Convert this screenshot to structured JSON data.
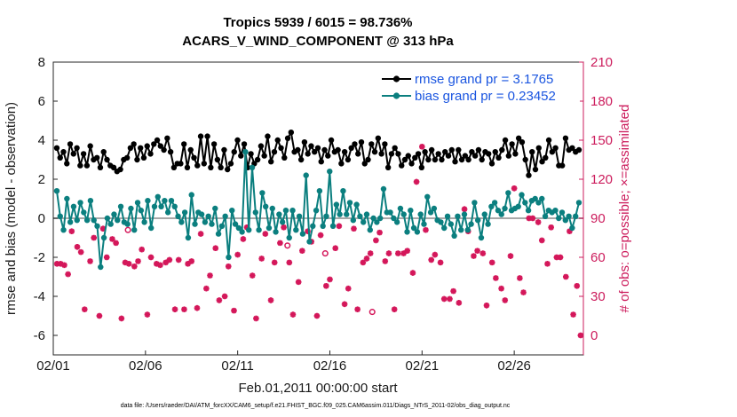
{
  "chart_data": {
    "type": "line",
    "title": "Tropics 5939 / 6015 = 98.736%",
    "subtitle": "ACARS_V_WIND_COMPONENT @ 313 hPa",
    "xlabel": "Feb.01,2011 00:00:00 start",
    "ylabel": "rmse and bias (model - observation)",
    "ylabel_right": "# of obs: o=possible; ×=assimilated",
    "xlim": [
      0,
      28.75
    ],
    "ylim": [
      -7,
      8
    ],
    "ylim_right": [
      -15,
      210
    ],
    "x_ticks": [
      0,
      5,
      10,
      15,
      20,
      25
    ],
    "x_tick_labels": [
      "02/01",
      "02/06",
      "02/11",
      "02/16",
      "02/21",
      "02/26"
    ],
    "y_ticks": [
      8,
      6,
      4,
      2,
      0,
      -2,
      -4,
      -6
    ],
    "y_tick_labels": [
      "8",
      "6",
      "4",
      "2",
      "0",
      "-2",
      "-4",
      "-6"
    ],
    "y_ticks_right": [
      210,
      180,
      150,
      120,
      90,
      60,
      30,
      0
    ],
    "y_tick_labels_right": [
      "210",
      "180",
      "150",
      "120",
      "90",
      "60",
      "30",
      "0"
    ],
    "zero_line": 0,
    "legend_position": "top-right",
    "colors": {
      "rmse": "#000000",
      "bias": "#0b7f7f",
      "obs": "#d4175a",
      "zero": "#a8a8a8",
      "legend_text": "#1a55e0",
      "right_axis": "#cc1c5c"
    },
    "series": [
      {
        "name": "rmse grand pr = 3.1765",
        "values": [
          3.6,
          3.1,
          3.4,
          2.8,
          3.8,
          3.3,
          3.6,
          2.7,
          3.3,
          2.7,
          3.7,
          3.0,
          3.1,
          2.6,
          3.4,
          3.0,
          2.7,
          2.6,
          2.4,
          2.5,
          3.0,
          3.1,
          3.6,
          3.8,
          3.0,
          3.6,
          3.1,
          3.7,
          3.3,
          3.8,
          4.0,
          3.7,
          3.5,
          4.1,
          3.4,
          2.6,
          2.8,
          2.8,
          3.8,
          2.6,
          3.5,
          3.1,
          2.7,
          4.2,
          2.8,
          4.2,
          2.6,
          3.8,
          3.0,
          2.6,
          3.5,
          2.5,
          2.8,
          3.4,
          4.0,
          3.2,
          3.8,
          2.6,
          3.3,
          2.8,
          3.0,
          3.7,
          3.2,
          4.2,
          2.9,
          3.4,
          4.0,
          3.6,
          3.1,
          4.1,
          4.4,
          3.4,
          3.5,
          3.0,
          3.9,
          3.3,
          3.7,
          3.4,
          3.6,
          2.9,
          3.5,
          3.2,
          4.0,
          3.4,
          3.5,
          2.8,
          3.4,
          3.0,
          3.6,
          3.8,
          3.3,
          3.9,
          2.8,
          3.0,
          3.8,
          3.4,
          4.1,
          3.3,
          3.8,
          2.6,
          3.3,
          3.6,
          3.3,
          2.7,
          3.0,
          3.2,
          2.8,
          3.1,
          3.3,
          2.6,
          3.4,
          3.0,
          3.5,
          3.0,
          3.3,
          3.0,
          3.4,
          3.2,
          3.5,
          2.9,
          3.5,
          3.0,
          3.2,
          3.0,
          3.4,
          3.2,
          3.5,
          3.0,
          3.4,
          3.3,
          2.8,
          3.4,
          3.1,
          3.5,
          4.0,
          3.2,
          3.8,
          3.3,
          4.1,
          3.9,
          3.0,
          2.2,
          3.4,
          2.5,
          3.6,
          2.9,
          3.1,
          4.0,
          3.4,
          3.6,
          2.7,
          2.7,
          4.1,
          3.5,
          3.6,
          3.4,
          3.5
        ]
      },
      {
        "name": "bias grand pr = 0.23452",
        "values": [
          1.4,
          0.1,
          -0.6,
          1.0,
          -0.2,
          0.6,
          -0.1,
          0.8,
          0.3,
          -0.1,
          0.9,
          -0.1,
          -0.4,
          -2.5,
          -1.0,
          0.0,
          -0.3,
          0.2,
          -0.1,
          0.6,
          -0.2,
          -0.3,
          0.5,
          -0.6,
          0.8,
          0.4,
          -0.2,
          0.9,
          -0.5,
          0.6,
          1.1,
          0.6,
          0.9,
          0.3,
          0.9,
          0.6,
          0.1,
          -0.2,
          0.3,
          -1.0,
          1.2,
          -0.3,
          0.3,
          0.2,
          -0.2,
          0.1,
          -0.3,
          0.5,
          -0.8,
          -0.4,
          0.1,
          -2.0,
          0.4,
          -0.3,
          -0.5,
          -0.7,
          3.4,
          -0.6,
          2.6,
          0.3,
          -0.6,
          1.3,
          0.6,
          -0.5,
          0.5,
          -0.7,
          0.2,
          -0.2,
          0.4,
          -1.0,
          0.4,
          -0.6,
          0.1,
          -0.8,
          2.2,
          -1.2,
          -0.4,
          0.4,
          1.4,
          -0.4,
          0.1,
          2.4,
          -0.4,
          0.7,
          0.2,
          1.4,
          0.2,
          0.8,
          -0.1,
          0.7,
          0.1,
          -0.2,
          0.2,
          -0.6,
          0.0,
          -0.2,
          0.0,
          1.5,
          0.3,
          0.3,
          0.0,
          -0.2,
          0.5,
          0.2,
          -0.7,
          0.4,
          -0.5,
          -0.7,
          0.2,
          -0.3,
          1.1,
          0.3,
          0.5,
          -0.1,
          -0.2,
          -0.5,
          0.1,
          -0.3,
          -0.9,
          0.1,
          -0.6,
          0.2,
          -0.6,
          -0.3,
          0.8,
          -0.1,
          -1.0,
          0.2,
          -0.3,
          0.6,
          0.8,
          0.4,
          0.2,
          0.5,
          1.3,
          0.4,
          0.5,
          0.6,
          1.2,
          0.8,
          0.4,
          0.9,
          1.0,
          0.8,
          1.0,
          0.1,
          0.4,
          0.3,
          0.4,
          0.0,
          0.3,
          -0.1,
          0.1,
          -0.5,
          0.1,
          0.8
        ]
      }
    ],
    "obs_possible": [
      {
        "x": 4.05,
        "y": 81
      },
      {
        "x": 12.7,
        "y": 69
      },
      {
        "x": 14.75,
        "y": 63
      },
      {
        "x": 17.3,
        "y": 18
      }
    ],
    "obs_assimilated": [
      {
        "x": 0.2,
        "y": 55
      },
      {
        "x": 0.4,
        "y": 55
      },
      {
        "x": 0.6,
        "y": 54
      },
      {
        "x": 0.8,
        "y": 47
      },
      {
        "x": 1.0,
        "y": 80
      },
      {
        "x": 1.3,
        "y": 68
      },
      {
        "x": 1.5,
        "y": 64
      },
      {
        "x": 1.7,
        "y": 20
      },
      {
        "x": 2.0,
        "y": 57
      },
      {
        "x": 2.2,
        "y": 75
      },
      {
        "x": 2.5,
        "y": 15
      },
      {
        "x": 2.7,
        "y": 82
      },
      {
        "x": 2.9,
        "y": 60
      },
      {
        "x": 3.2,
        "y": 74
      },
      {
        "x": 3.4,
        "y": 71
      },
      {
        "x": 3.7,
        "y": 13
      },
      {
        "x": 3.9,
        "y": 56
      },
      {
        "x": 4.1,
        "y": 55
      },
      {
        "x": 4.4,
        "y": 53
      },
      {
        "x": 4.6,
        "y": 57
      },
      {
        "x": 4.8,
        "y": 66
      },
      {
        "x": 5.1,
        "y": 16
      },
      {
        "x": 5.3,
        "y": 60
      },
      {
        "x": 5.6,
        "y": 55
      },
      {
        "x": 5.8,
        "y": 54
      },
      {
        "x": 6.1,
        "y": 56
      },
      {
        "x": 6.3,
        "y": 58
      },
      {
        "x": 6.6,
        "y": 20
      },
      {
        "x": 6.8,
        "y": 58
      },
      {
        "x": 7.1,
        "y": 20
      },
      {
        "x": 7.3,
        "y": 55
      },
      {
        "x": 7.5,
        "y": 57
      },
      {
        "x": 7.8,
        "y": 21
      },
      {
        "x": 8.0,
        "y": 78
      },
      {
        "x": 8.3,
        "y": 36
      },
      {
        "x": 8.5,
        "y": 46
      },
      {
        "x": 8.8,
        "y": 67
      },
      {
        "x": 9.0,
        "y": 27
      },
      {
        "x": 9.3,
        "y": 30
      },
      {
        "x": 9.5,
        "y": 53
      },
      {
        "x": 9.8,
        "y": 19
      },
      {
        "x": 10.0,
        "y": 62
      },
      {
        "x": 10.3,
        "y": 74
      },
      {
        "x": 10.5,
        "y": 83
      },
      {
        "x": 10.8,
        "y": 46
      },
      {
        "x": 11.0,
        "y": 13
      },
      {
        "x": 11.3,
        "y": 59
      },
      {
        "x": 11.5,
        "y": 78
      },
      {
        "x": 11.8,
        "y": 27
      },
      {
        "x": 12.0,
        "y": 56
      },
      {
        "x": 12.3,
        "y": 71
      },
      {
        "x": 12.5,
        "y": 83
      },
      {
        "x": 12.8,
        "y": 56
      },
      {
        "x": 13.0,
        "y": 16
      },
      {
        "x": 13.3,
        "y": 41
      },
      {
        "x": 13.5,
        "y": 65
      },
      {
        "x": 13.8,
        "y": 80
      },
      {
        "x": 14.0,
        "y": 72
      },
      {
        "x": 14.3,
        "y": 15
      },
      {
        "x": 14.5,
        "y": 77
      },
      {
        "x": 14.8,
        "y": 38
      },
      {
        "x": 15.0,
        "y": 43
      },
      {
        "x": 15.3,
        "y": 67
      },
      {
        "x": 15.5,
        "y": 84
      },
      {
        "x": 15.8,
        "y": 24
      },
      {
        "x": 16.0,
        "y": 36
      },
      {
        "x": 16.3,
        "y": 82
      },
      {
        "x": 16.5,
        "y": 20
      },
      {
        "x": 16.8,
        "y": 56
      },
      {
        "x": 17.0,
        "y": 59
      },
      {
        "x": 17.2,
        "y": 63
      },
      {
        "x": 17.5,
        "y": 73
      },
      {
        "x": 17.7,
        "y": 79
      },
      {
        "x": 18.0,
        "y": 57
      },
      {
        "x": 18.2,
        "y": 63
      },
      {
        "x": 18.5,
        "y": 20
      },
      {
        "x": 18.7,
        "y": 63
      },
      {
        "x": 19.0,
        "y": 63
      },
      {
        "x": 19.2,
        "y": 65
      },
      {
        "x": 19.5,
        "y": 48
      },
      {
        "x": 19.7,
        "y": 118
      },
      {
        "x": 20.0,
        "y": 145
      },
      {
        "x": 20.2,
        "y": 81
      },
      {
        "x": 20.5,
        "y": 58
      },
      {
        "x": 20.7,
        "y": 62
      },
      {
        "x": 21.0,
        "y": 56
      },
      {
        "x": 21.2,
        "y": 28
      },
      {
        "x": 21.5,
        "y": 28
      },
      {
        "x": 21.7,
        "y": 34
      },
      {
        "x": 22.0,
        "y": 25
      },
      {
        "x": 22.3,
        "y": 97
      },
      {
        "x": 22.5,
        "y": 80
      },
      {
        "x": 22.8,
        "y": 61
      },
      {
        "x": 23.0,
        "y": 65
      },
      {
        "x": 23.3,
        "y": 63
      },
      {
        "x": 23.5,
        "y": 23
      },
      {
        "x": 23.8,
        "y": 56
      },
      {
        "x": 24.0,
        "y": 44
      },
      {
        "x": 24.3,
        "y": 36
      },
      {
        "x": 24.5,
        "y": 27
      },
      {
        "x": 24.8,
        "y": 61
      },
      {
        "x": 25.0,
        "y": 113
      },
      {
        "x": 25.3,
        "y": 44
      },
      {
        "x": 25.5,
        "y": 33
      },
      {
        "x": 25.8,
        "y": 90
      },
      {
        "x": 26.0,
        "y": 90
      },
      {
        "x": 26.3,
        "y": 87
      },
      {
        "x": 26.5,
        "y": 73
      },
      {
        "x": 26.8,
        "y": 55
      },
      {
        "x": 27.0,
        "y": 83
      },
      {
        "x": 27.3,
        "y": 60
      },
      {
        "x": 27.5,
        "y": 60
      },
      {
        "x": 27.8,
        "y": 45
      },
      {
        "x": 28.0,
        "y": 80
      },
      {
        "x": 28.2,
        "y": 16
      },
      {
        "x": 28.4,
        "y": 38
      },
      {
        "x": 28.6,
        "y": 0
      }
    ]
  },
  "footnote": "data file: /Users/raeder/DAI/ATM_forcXX/CAM6_setup/f.e21.FHIST_BGC.f09_025.CAM6assim.011/Diags_NTrS_2011-02/obs_diag_output.nc"
}
